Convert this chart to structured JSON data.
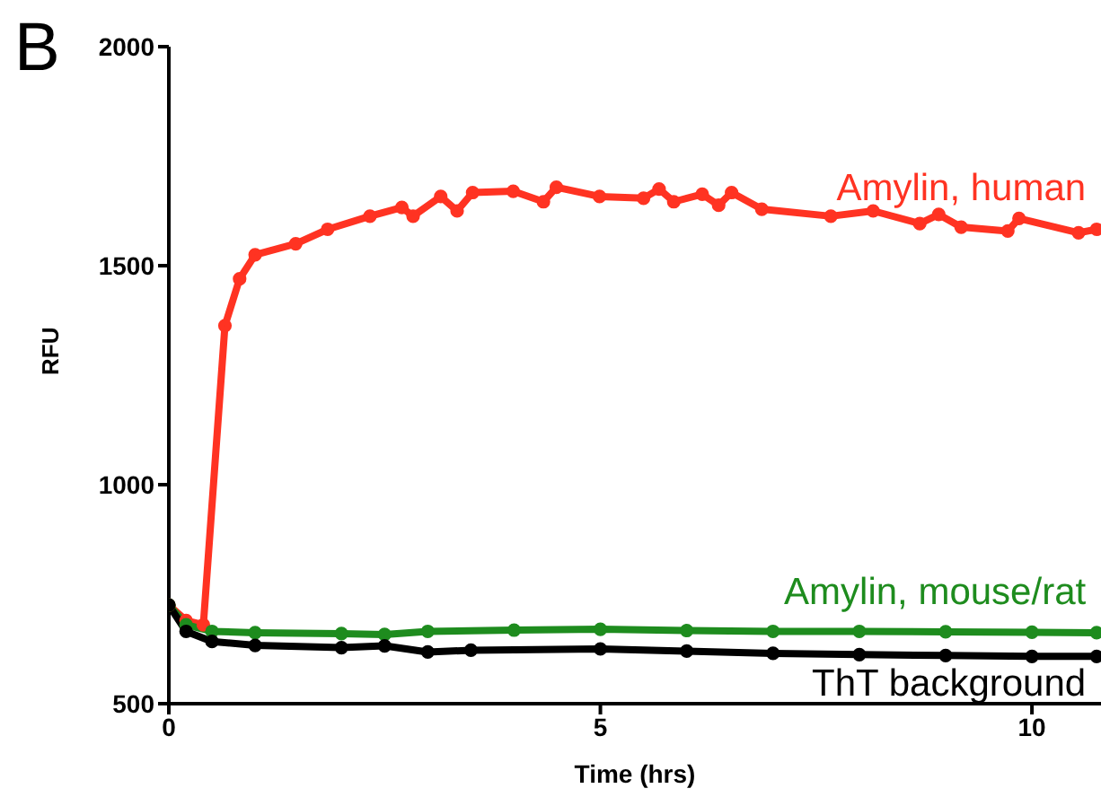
{
  "chart_data": {
    "type": "line",
    "title": "B",
    "xlabel": "Time (hrs)",
    "ylabel": "RFU",
    "xlim": [
      0,
      10.8
    ],
    "xticks": [
      0,
      5,
      10
    ],
    "ylim": [
      500,
      2000
    ],
    "yticks": [
      500,
      1000,
      1500,
      2000
    ],
    "marker": "circle",
    "line_style": "solid",
    "series": [
      {
        "name": "Amylin, human",
        "color": "#ff3322",
        "x": [
          0,
          0.2,
          0.4,
          0.65,
          0.82,
          1.0,
          1.47,
          1.84,
          2.33,
          2.7,
          2.83,
          3.15,
          3.34,
          3.52,
          3.99,
          4.34,
          4.49,
          4.99,
          5.5,
          5.68,
          5.85,
          6.18,
          6.37,
          6.52,
          6.87,
          7.67,
          8.16,
          8.7,
          8.92,
          9.18,
          9.72,
          9.85,
          10.54,
          10.75
        ],
        "values": [
          725,
          690,
          680,
          1363,
          1470,
          1525,
          1550,
          1583,
          1613,
          1633,
          1613,
          1658,
          1625,
          1667,
          1670,
          1646,
          1679,
          1658,
          1654,
          1675,
          1646,
          1663,
          1638,
          1667,
          1629,
          1613,
          1625,
          1596,
          1617,
          1588,
          1579,
          1608,
          1575,
          1583
        ]
      },
      {
        "name": "Amylin, mouse/rat",
        "color": "#1e8c1e",
        "x": [
          0,
          0.2,
          0.5,
          1,
          2,
          2.5,
          3,
          4,
          5,
          6,
          7,
          8,
          9,
          10,
          10.75
        ],
        "values": [
          725,
          680,
          665,
          662,
          660,
          658,
          665,
          668,
          670,
          667,
          665,
          665,
          664,
          663,
          662
        ]
      },
      {
        "name": "ThT background",
        "color": "#000000",
        "x": [
          0,
          0.2,
          0.5,
          1,
          2,
          2.5,
          3,
          3.5,
          5,
          6,
          7,
          8,
          9,
          10,
          10.75
        ],
        "values": [
          725,
          665,
          642,
          633,
          628,
          632,
          618,
          622,
          625,
          620,
          615,
          612,
          610,
          608,
          608
        ]
      }
    ]
  }
}
